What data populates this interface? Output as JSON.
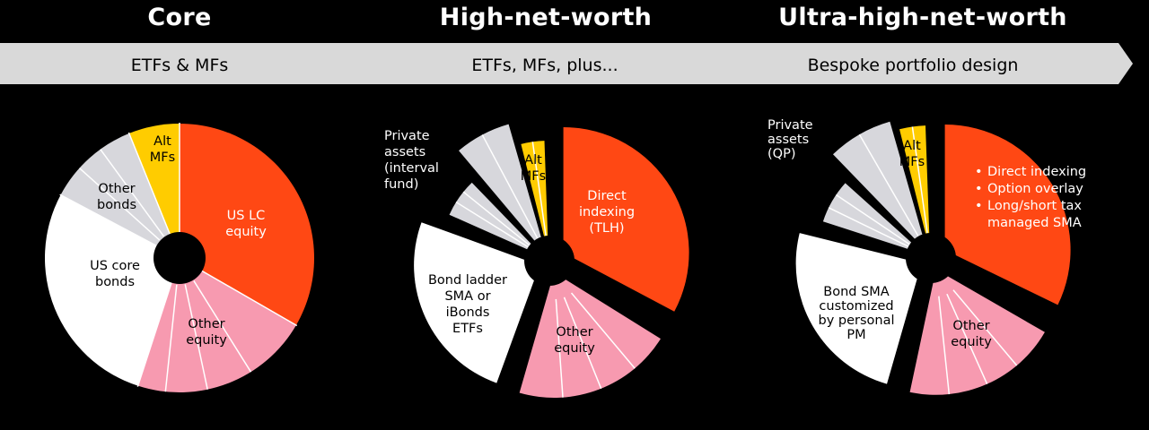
{
  "tiers": [
    {
      "title": "Core",
      "subtitle": "ETFs & MFs"
    },
    {
      "title": "High-net-worth",
      "subtitle": "ETFs, MFs, plus..."
    },
    {
      "title": "Ultra-high-net-worth",
      "subtitle": "Bespoke portfolio design"
    }
  ],
  "colors": {
    "banner": "#d9d9d9",
    "equity_lc": "#ff4814",
    "other_equity": "#f79ab0",
    "core_bonds": "#ffffff",
    "other_bonds": "#d7d7dc",
    "alt": "#ffcc00",
    "hub": "#000000"
  },
  "labels": {
    "core": {
      "us_lc": [
        "US LC",
        "equity"
      ],
      "other_equity": [
        "Other",
        "equity"
      ],
      "us_core_bonds": [
        "US core",
        "bonds"
      ],
      "other_bonds": [
        "Other",
        "bonds"
      ],
      "alt": [
        "Alt",
        "MFs"
      ]
    },
    "hnw": {
      "direct": [
        "Direct",
        "indexing",
        "(TLH)"
      ],
      "other_equity": [
        "Other",
        "equity"
      ],
      "bond_ladder": [
        "Bond ladder",
        "SMA or",
        "iBonds",
        "ETFs"
      ],
      "private": [
        "Private",
        "assets",
        "(interval",
        "fund)"
      ],
      "alt": [
        "Alt",
        "MFs"
      ]
    },
    "uhnw": {
      "bullets": [
        "Direct indexing",
        "Option overlay",
        "Long/short tax",
        "managed SMA"
      ],
      "other_equity": [
        "Other",
        "equity"
      ],
      "bond_sma": [
        "Bond SMA",
        "customized",
        "by personal",
        "PM"
      ],
      "private": [
        "Private",
        "assets",
        "(QP)"
      ],
      "alt": [
        "Alt",
        "MFs"
      ]
    }
  }
}
